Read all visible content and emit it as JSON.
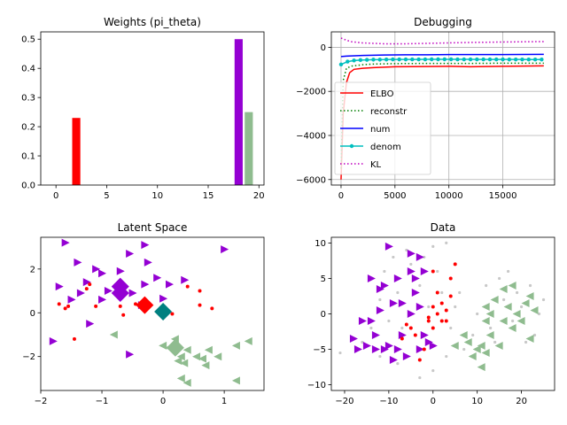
{
  "chart_data": [
    {
      "type": "bar",
      "title": "Weights (pi_theta)",
      "xlim": [
        -1.5,
        20.5
      ],
      "ylim": [
        0,
        0.525
      ],
      "xticks": [
        0,
        5,
        10,
        15,
        20
      ],
      "yticks": [
        0.0,
        0.1,
        0.2,
        0.3,
        0.4,
        0.5
      ],
      "xtick_labels": [
        "0",
        "5",
        "10",
        "15",
        "20"
      ],
      "ytick_labels": [
        "0.0",
        "0.1",
        "0.2",
        "0.3",
        "0.4",
        "0.5"
      ],
      "bars": [
        {
          "x": 2,
          "value": 0.23,
          "color": "#ff0000"
        },
        {
          "x": 18,
          "value": 0.5,
          "color": "#9400d3"
        },
        {
          "x": 19,
          "value": 0.25,
          "color": "#8fbc8f"
        }
      ]
    },
    {
      "type": "line",
      "title": "Debugging",
      "xlim": [
        -900,
        19800
      ],
      "ylim": [
        -6250,
        700
      ],
      "xticks": [
        0,
        5000,
        10000,
        15000
      ],
      "yticks": [
        0,
        -2000,
        -4000,
        -6000
      ],
      "xtick_labels": [
        "0",
        "5000",
        "10000",
        "15000"
      ],
      "ytick_labels": [
        "0",
        "−2000",
        "−4000",
        "−6000"
      ],
      "grid": true,
      "legend_position": "center-left",
      "series": [
        {
          "name": "ELBO",
          "color": "#ff0000",
          "style": "solid",
          "x": [
            0,
            200,
            500,
            800,
            1200,
            2000,
            3000,
            5000,
            8000,
            10000,
            12000,
            15000,
            17000,
            18800
          ],
          "values": [
            -6000,
            -3000,
            -1600,
            -1150,
            -1000,
            -950,
            -920,
            -880,
            -870,
            -860,
            -880,
            -860,
            -850,
            -840
          ]
        },
        {
          "name": "reconstr",
          "color": "#007f00",
          "style": "dotted",
          "x": [
            0,
            200,
            500,
            1000,
            2000,
            3000,
            5000,
            8000,
            10000,
            12000,
            15000,
            18800
          ],
          "values": [
            -5500,
            -1500,
            -950,
            -850,
            -790,
            -760,
            -740,
            -730,
            -730,
            -730,
            -720,
            -720
          ]
        },
        {
          "name": "num",
          "color": "#0000ff",
          "style": "solid",
          "x": [
            0,
            500,
            1000,
            2000,
            4000,
            6000,
            8000,
            10000,
            12000,
            15000,
            18800
          ],
          "values": [
            -420,
            -400,
            -390,
            -370,
            -350,
            -340,
            -340,
            -330,
            -330,
            -330,
            -320
          ]
        },
        {
          "name": "denom",
          "color": "#00bfbf",
          "style": "solid-dots",
          "x": [
            0,
            600,
            1200,
            1800,
            2400,
            3000,
            3600,
            4200,
            4800,
            5400,
            6000,
            6600,
            7200,
            7800,
            8400,
            9000,
            9600,
            10200,
            10800,
            11400,
            12000,
            12600,
            13200,
            13800,
            14400,
            15000,
            15600,
            16200,
            16800,
            17400,
            18000,
            18600
          ],
          "values": [
            -780,
            -650,
            -600,
            -580,
            -570,
            -560,
            -560,
            -555,
            -550,
            -550,
            -550,
            -548,
            -548,
            -546,
            -545,
            -545,
            -545,
            -545,
            -546,
            -546,
            -547,
            -548,
            -548,
            -549,
            -550,
            -550,
            -551,
            -552,
            -552,
            -553,
            -554,
            -555
          ]
        },
        {
          "name": "KL",
          "color": "#bf00bf",
          "style": "dotted",
          "x": [
            0,
            500,
            1000,
            2000,
            4000,
            6000,
            8000,
            10000,
            12000,
            15000,
            18800
          ],
          "values": [
            420,
            320,
            250,
            200,
            160,
            160,
            180,
            200,
            220,
            240,
            260
          ]
        }
      ]
    },
    {
      "type": "scatter",
      "title": "Latent Space",
      "xlim": [
        -2.0,
        1.65
      ],
      "ylim": [
        -3.55,
        3.45
      ],
      "xticks": [
        -2,
        -1,
        0,
        1
      ],
      "yticks": [
        2,
        0,
        -2
      ],
      "xtick_labels": [
        "−2",
        "−1",
        "0",
        "1"
      ],
      "ytick_labels": [
        "2",
        "0",
        "−2"
      ],
      "series": [
        {
          "marker": "triangle-right",
          "color": "#9400d3",
          "points": [
            [
              -1.6,
              3.2
            ],
            [
              -1.8,
              -1.3
            ],
            [
              -1.7,
              1.2
            ],
            [
              -1.5,
              0.6
            ],
            [
              -1.4,
              2.3
            ],
            [
              -1.35,
              0.9
            ],
            [
              -1.25,
              1.4
            ],
            [
              -1.2,
              -0.5
            ],
            [
              -1.1,
              2.0
            ],
            [
              -1.0,
              1.8
            ],
            [
              -1.0,
              0.6
            ],
            [
              -0.9,
              1.0
            ],
            [
              -0.7,
              1.9
            ],
            [
              -0.55,
              2.7
            ],
            [
              -0.5,
              0.9
            ],
            [
              -0.3,
              3.1
            ],
            [
              -0.3,
              1.3
            ],
            [
              -0.25,
              2.3
            ],
            [
              -0.1,
              1.6
            ],
            [
              0.0,
              0.65
            ],
            [
              0.1,
              1.3
            ],
            [
              0.35,
              1.5
            ],
            [
              1.0,
              2.9
            ],
            [
              -0.55,
              -1.9
            ],
            [
              -0.35,
              0.35
            ]
          ]
        },
        {
          "marker": "dot",
          "color": "#ff0000",
          "points": [
            [
              -1.7,
              0.4
            ],
            [
              -1.6,
              0.2
            ],
            [
              -1.55,
              0.3
            ],
            [
              -1.45,
              -1.2
            ],
            [
              -1.25,
              1.1
            ],
            [
              -1.2,
              1.3
            ],
            [
              -1.1,
              0.3
            ],
            [
              -0.7,
              0.3
            ],
            [
              -0.65,
              -0.1
            ],
            [
              -0.45,
              0.4
            ],
            [
              -0.3,
              0.35
            ],
            [
              0.15,
              -0.05
            ],
            [
              0.4,
              1.2
            ],
            [
              0.6,
              1.0
            ],
            [
              0.6,
              0.35
            ],
            [
              0.8,
              0.2
            ],
            [
              -0.65,
              0.8
            ]
          ]
        },
        {
          "marker": "triangle-left",
          "color": "#8fbc8f",
          "points": [
            [
              -0.8,
              -1.0
            ],
            [
              0.0,
              -1.5
            ],
            [
              0.1,
              -1.6
            ],
            [
              0.2,
              -1.2
            ],
            [
              0.25,
              -2.2
            ],
            [
              0.3,
              -2.0
            ],
            [
              0.35,
              -2.3
            ],
            [
              0.3,
              -3.0
            ],
            [
              0.4,
              -1.7
            ],
            [
              0.4,
              -3.2
            ],
            [
              0.65,
              -2.1
            ],
            [
              0.7,
              -2.4
            ],
            [
              0.75,
              -1.7
            ],
            [
              0.9,
              -2.0
            ],
            [
              1.2,
              -1.5
            ],
            [
              1.4,
              -1.3
            ],
            [
              1.2,
              -3.1
            ],
            [
              0.55,
              -2.0
            ]
          ]
        },
        {
          "marker": "diamond-large",
          "color": "#9400d3",
          "points": [
            [
              -0.7,
              1.2
            ],
            [
              -0.7,
              0.9
            ]
          ]
        },
        {
          "marker": "diamond-large",
          "color": "#ff0000",
          "points": [
            [
              -0.3,
              0.35
            ]
          ]
        },
        {
          "marker": "diamond-large",
          "color": "#008080",
          "points": [
            [
              0.0,
              0.05
            ]
          ]
        },
        {
          "marker": "diamond-large",
          "color": "#8fbc8f",
          "points": [
            [
              0.2,
              -1.6
            ]
          ]
        }
      ]
    },
    {
      "type": "scatter",
      "title": "Data",
      "xlim": [
        -23,
        27.5
      ],
      "ylim": [
        -10.8,
        10.8
      ],
      "xticks": [
        -20,
        -10,
        0,
        10,
        20
      ],
      "yticks": [
        10,
        5,
        0,
        -5,
        -10
      ],
      "xtick_labels": [
        "−20",
        "−10",
        "0",
        "10",
        "20"
      ],
      "ytick_labels": [
        "10",
        "5",
        "0",
        "−5",
        "−10"
      ],
      "series": [
        {
          "marker": "dot-small",
          "color": "#c8c8c8",
          "points": [
            [
              -21,
              -5.5
            ],
            [
              -16,
              -4
            ],
            [
              -14,
              -2
            ],
            [
              -12,
              2
            ],
            [
              -11,
              6
            ],
            [
              -10,
              -1
            ],
            [
              -9,
              8
            ],
            [
              -8,
              3
            ],
            [
              -7,
              -2
            ],
            [
              -6,
              9
            ],
            [
              -5,
              7
            ],
            [
              -4,
              -3
            ],
            [
              -3,
              4
            ],
            [
              -2,
              8
            ],
            [
              -1,
              1
            ],
            [
              0,
              9.5
            ],
            [
              1,
              6
            ],
            [
              2,
              3
            ],
            [
              3,
              10
            ],
            [
              4,
              -2
            ],
            [
              5,
              1
            ],
            [
              6,
              3
            ],
            [
              7,
              -5
            ],
            [
              9,
              -3
            ],
            [
              10,
              0
            ],
            [
              12,
              4
            ],
            [
              13,
              -2
            ],
            [
              15,
              5
            ],
            [
              16,
              2
            ],
            [
              17,
              6
            ],
            [
              18,
              -1
            ],
            [
              19,
              3
            ],
            [
              20,
              1
            ],
            [
              22,
              4
            ],
            [
              23,
              -3
            ],
            [
              24,
              0
            ],
            [
              25,
              2
            ],
            [
              -3,
              -9
            ],
            [
              -8,
              -7
            ],
            [
              -12,
              -6
            ],
            [
              0,
              -8
            ],
            [
              3,
              -6
            ],
            [
              14,
              -4
            ],
            [
              21,
              -4
            ]
          ]
        },
        {
          "marker": "triangle-right",
          "color": "#9400d3",
          "points": [
            [
              -18,
              -3.5
            ],
            [
              -17,
              -5
            ],
            [
              -16,
              -1
            ],
            [
              -15,
              -4.5
            ],
            [
              -14,
              -1
            ],
            [
              -14,
              5
            ],
            [
              -13,
              -5
            ],
            [
              -13,
              -3
            ],
            [
              -12,
              0.5
            ],
            [
              -12,
              3.5
            ],
            [
              -11,
              -5
            ],
            [
              -10,
              -4.5
            ],
            [
              -10,
              9.5
            ],
            [
              -9,
              -6.5
            ],
            [
              -9,
              1.5
            ],
            [
              -8,
              -5
            ],
            [
              -8,
              5
            ],
            [
              -7,
              -3
            ],
            [
              -6,
              -6
            ],
            [
              -5,
              8.5
            ],
            [
              -5,
              0
            ],
            [
              -4,
              5
            ],
            [
              -4,
              3
            ],
            [
              -3,
              -5
            ],
            [
              -3,
              8
            ],
            [
              -2,
              6
            ],
            [
              -2,
              -3
            ],
            [
              -1,
              -4
            ],
            [
              0,
              -4.5
            ],
            [
              -5,
              6
            ],
            [
              -7,
              1.5
            ],
            [
              -11,
              4
            ],
            [
              -3,
              1
            ]
          ]
        },
        {
          "marker": "dot",
          "color": "#ff0000",
          "points": [
            [
              -7,
              -3.5
            ],
            [
              -6,
              -1.5
            ],
            [
              -5,
              -2
            ],
            [
              -4,
              -3
            ],
            [
              -3,
              -6.5
            ],
            [
              -2,
              -5
            ],
            [
              -1,
              -0.5
            ],
            [
              0,
              6
            ],
            [
              0,
              -2
            ],
            [
              1,
              3
            ],
            [
              1,
              0
            ],
            [
              2,
              -1
            ],
            [
              2,
              1.5
            ],
            [
              3,
              -1
            ],
            [
              3,
              0.5
            ],
            [
              4,
              5
            ],
            [
              4,
              2.5
            ],
            [
              5,
              7
            ],
            [
              0,
              1
            ],
            [
              -1,
              -1
            ]
          ]
        },
        {
          "marker": "triangle-left",
          "color": "#8fbc8f",
          "points": [
            [
              5,
              -4.5
            ],
            [
              7,
              -3
            ],
            [
              8,
              -4
            ],
            [
              9,
              -6
            ],
            [
              10,
              -5
            ],
            [
              11,
              -4.5
            ],
            [
              11,
              -7.5
            ],
            [
              12,
              -1
            ],
            [
              12,
              1
            ],
            [
              13,
              -3
            ],
            [
              14,
              2
            ],
            [
              15,
              -4.5
            ],
            [
              16,
              -1
            ],
            [
              16,
              3.5
            ],
            [
              17,
              1
            ],
            [
              18,
              -2
            ],
            [
              18,
              4
            ],
            [
              19,
              0
            ],
            [
              20,
              -1
            ],
            [
              21,
              1.5
            ],
            [
              22,
              2.5
            ],
            [
              22,
              -3.5
            ],
            [
              23,
              0.5
            ],
            [
              12,
              -5.5
            ],
            [
              13,
              0
            ]
          ]
        }
      ]
    }
  ]
}
